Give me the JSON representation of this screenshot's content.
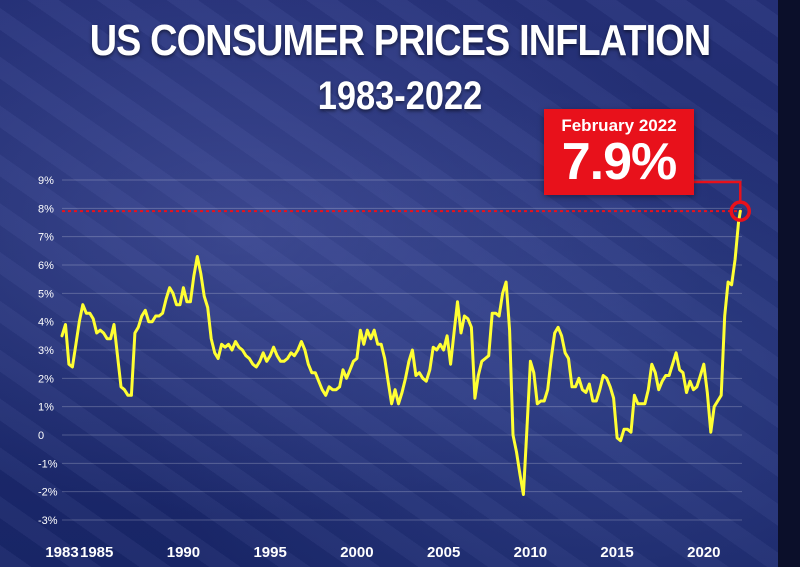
{
  "header": {
    "title": "US CONSUMER PRICES INFLATION",
    "subtitle": "1983-2022"
  },
  "callout": {
    "label": "February 2022",
    "value": "7.9%"
  },
  "colors": {
    "line": "#ffff33",
    "highlight": "#e8111b",
    "grid": "#ffffff",
    "text": "#ffffff"
  },
  "chart_data": {
    "type": "line",
    "title": "US CONSUMER PRICES INFLATION",
    "subtitle": "1983-2022",
    "xlabel": "",
    "ylabel": "",
    "ylim": [
      -3,
      9
    ],
    "xlim": [
      1983,
      2022.2
    ],
    "yticks": [
      {
        "value": 9,
        "label": "9%"
      },
      {
        "value": 8,
        "label": "8%"
      },
      {
        "value": 7,
        "label": "7%"
      },
      {
        "value": 6,
        "label": "6%"
      },
      {
        "value": 5,
        "label": "5%"
      },
      {
        "value": 4,
        "label": "4%"
      },
      {
        "value": 3,
        "label": "3%"
      },
      {
        "value": 2,
        "label": "2%"
      },
      {
        "value": 1,
        "label": "1%"
      },
      {
        "value": 0,
        "label": "0"
      },
      {
        "value": -1,
        "label": "-1%"
      },
      {
        "value": -2,
        "label": "-2%"
      },
      {
        "value": -3,
        "label": "-3%"
      }
    ],
    "xticks": [
      {
        "value": 1983,
        "label": "1983"
      },
      {
        "value": 1985,
        "label": "1985"
      },
      {
        "value": 1990,
        "label": "1990"
      },
      {
        "value": 1995,
        "label": "1995"
      },
      {
        "value": 2000,
        "label": "2000"
      },
      {
        "value": 2005,
        "label": "2005"
      },
      {
        "value": 2010,
        "label": "2010"
      },
      {
        "value": 2015,
        "label": "2015"
      },
      {
        "value": 2020,
        "label": "2020"
      }
    ],
    "reference_line": {
      "value": 7.9
    },
    "highlight_point": {
      "x": 2022.1,
      "y": 7.9
    },
    "series": [
      {
        "points": [
          [
            1983.0,
            3.5
          ],
          [
            1983.2,
            3.9
          ],
          [
            1983.4,
            2.5
          ],
          [
            1983.6,
            2.4
          ],
          [
            1983.8,
            3.2
          ],
          [
            1984.0,
            4.0
          ],
          [
            1984.2,
            4.6
          ],
          [
            1984.4,
            4.3
          ],
          [
            1984.6,
            4.3
          ],
          [
            1984.8,
            4.1
          ],
          [
            1985.0,
            3.6
          ],
          [
            1985.2,
            3.7
          ],
          [
            1985.4,
            3.6
          ],
          [
            1985.6,
            3.4
          ],
          [
            1985.8,
            3.4
          ],
          [
            1986.0,
            3.9
          ],
          [
            1986.2,
            2.8
          ],
          [
            1986.4,
            1.7
          ],
          [
            1986.6,
            1.6
          ],
          [
            1986.8,
            1.4
          ],
          [
            1987.0,
            1.4
          ],
          [
            1987.2,
            3.6
          ],
          [
            1987.4,
            3.8
          ],
          [
            1987.6,
            4.2
          ],
          [
            1987.8,
            4.4
          ],
          [
            1988.0,
            4.0
          ],
          [
            1988.2,
            4.0
          ],
          [
            1988.4,
            4.2
          ],
          [
            1988.6,
            4.2
          ],
          [
            1988.8,
            4.3
          ],
          [
            1989.0,
            4.8
          ],
          [
            1989.2,
            5.2
          ],
          [
            1989.4,
            5.0
          ],
          [
            1989.6,
            4.6
          ],
          [
            1989.8,
            4.6
          ],
          [
            1990.0,
            5.2
          ],
          [
            1990.2,
            4.7
          ],
          [
            1990.4,
            4.7
          ],
          [
            1990.6,
            5.6
          ],
          [
            1990.8,
            6.3
          ],
          [
            1991.0,
            5.7
          ],
          [
            1991.2,
            4.9
          ],
          [
            1991.4,
            4.5
          ],
          [
            1991.6,
            3.4
          ],
          [
            1991.8,
            2.9
          ],
          [
            1992.0,
            2.7
          ],
          [
            1992.2,
            3.2
          ],
          [
            1992.4,
            3.1
          ],
          [
            1992.6,
            3.2
          ],
          [
            1992.8,
            3.0
          ],
          [
            1993.0,
            3.3
          ],
          [
            1993.2,
            3.1
          ],
          [
            1993.4,
            3.0
          ],
          [
            1993.6,
            2.8
          ],
          [
            1993.8,
            2.7
          ],
          [
            1994.0,
            2.5
          ],
          [
            1994.2,
            2.4
          ],
          [
            1994.4,
            2.6
          ],
          [
            1994.6,
            2.9
          ],
          [
            1994.8,
            2.6
          ],
          [
            1995.0,
            2.8
          ],
          [
            1995.2,
            3.1
          ],
          [
            1995.4,
            2.8
          ],
          [
            1995.6,
            2.6
          ],
          [
            1995.8,
            2.6
          ],
          [
            1996.0,
            2.7
          ],
          [
            1996.2,
            2.9
          ],
          [
            1996.4,
            2.8
          ],
          [
            1996.6,
            3.0
          ],
          [
            1996.8,
            3.3
          ],
          [
            1997.0,
            3.0
          ],
          [
            1997.2,
            2.5
          ],
          [
            1997.4,
            2.2
          ],
          [
            1997.6,
            2.2
          ],
          [
            1997.8,
            1.9
          ],
          [
            1998.0,
            1.6
          ],
          [
            1998.2,
            1.4
          ],
          [
            1998.4,
            1.7
          ],
          [
            1998.6,
            1.6
          ],
          [
            1998.8,
            1.6
          ],
          [
            1999.0,
            1.7
          ],
          [
            1999.2,
            2.3
          ],
          [
            1999.4,
            2.0
          ],
          [
            1999.6,
            2.3
          ],
          [
            1999.8,
            2.6
          ],
          [
            2000.0,
            2.7
          ],
          [
            2000.2,
            3.7
          ],
          [
            2000.4,
            3.2
          ],
          [
            2000.6,
            3.7
          ],
          [
            2000.8,
            3.4
          ],
          [
            2001.0,
            3.7
          ],
          [
            2001.2,
            3.2
          ],
          [
            2001.4,
            3.2
          ],
          [
            2001.6,
            2.7
          ],
          [
            2001.8,
            1.9
          ],
          [
            2002.0,
            1.1
          ],
          [
            2002.2,
            1.6
          ],
          [
            2002.4,
            1.1
          ],
          [
            2002.6,
            1.5
          ],
          [
            2002.8,
            2.0
          ],
          [
            2003.0,
            2.6
          ],
          [
            2003.2,
            3.0
          ],
          [
            2003.4,
            2.1
          ],
          [
            2003.6,
            2.2
          ],
          [
            2003.8,
            2.0
          ],
          [
            2004.0,
            1.9
          ],
          [
            2004.2,
            2.3
          ],
          [
            2004.4,
            3.1
          ],
          [
            2004.6,
            3.0
          ],
          [
            2004.8,
            3.2
          ],
          [
            2005.0,
            3.0
          ],
          [
            2005.2,
            3.5
          ],
          [
            2005.4,
            2.5
          ],
          [
            2005.6,
            3.6
          ],
          [
            2005.8,
            4.7
          ],
          [
            2006.0,
            3.6
          ],
          [
            2006.2,
            4.2
          ],
          [
            2006.4,
            4.1
          ],
          [
            2006.6,
            3.8
          ],
          [
            2006.8,
            1.3
          ],
          [
            2007.0,
            2.1
          ],
          [
            2007.2,
            2.6
          ],
          [
            2007.4,
            2.7
          ],
          [
            2007.6,
            2.8
          ],
          [
            2007.8,
            4.3
          ],
          [
            2008.0,
            4.3
          ],
          [
            2008.2,
            4.2
          ],
          [
            2008.4,
            5.0
          ],
          [
            2008.6,
            5.4
          ],
          [
            2008.8,
            3.7
          ],
          [
            2009.0,
            0.0
          ],
          [
            2009.2,
            -0.6
          ],
          [
            2009.4,
            -1.4
          ],
          [
            2009.6,
            -2.1
          ],
          [
            2009.8,
            0.2
          ],
          [
            2010.0,
            2.6
          ],
          [
            2010.2,
            2.2
          ],
          [
            2010.4,
            1.1
          ],
          [
            2010.6,
            1.2
          ],
          [
            2010.8,
            1.2
          ],
          [
            2011.0,
            1.6
          ],
          [
            2011.2,
            2.7
          ],
          [
            2011.4,
            3.6
          ],
          [
            2011.6,
            3.8
          ],
          [
            2011.8,
            3.5
          ],
          [
            2012.0,
            2.9
          ],
          [
            2012.2,
            2.7
          ],
          [
            2012.4,
            1.7
          ],
          [
            2012.6,
            1.7
          ],
          [
            2012.8,
            2.0
          ],
          [
            2013.0,
            1.6
          ],
          [
            2013.2,
            1.5
          ],
          [
            2013.4,
            1.8
          ],
          [
            2013.6,
            1.2
          ],
          [
            2013.8,
            1.2
          ],
          [
            2014.0,
            1.6
          ],
          [
            2014.2,
            2.1
          ],
          [
            2014.4,
            2.0
          ],
          [
            2014.6,
            1.7
          ],
          [
            2014.8,
            1.3
          ],
          [
            2015.0,
            -0.1
          ],
          [
            2015.2,
            -0.2
          ],
          [
            2015.4,
            0.2
          ],
          [
            2015.6,
            0.2
          ],
          [
            2015.8,
            0.1
          ],
          [
            2016.0,
            1.4
          ],
          [
            2016.2,
            1.1
          ],
          [
            2016.4,
            1.1
          ],
          [
            2016.6,
            1.1
          ],
          [
            2016.8,
            1.6
          ],
          [
            2017.0,
            2.5
          ],
          [
            2017.2,
            2.2
          ],
          [
            2017.4,
            1.6
          ],
          [
            2017.6,
            1.9
          ],
          [
            2017.8,
            2.1
          ],
          [
            2018.0,
            2.1
          ],
          [
            2018.2,
            2.5
          ],
          [
            2018.4,
            2.9
          ],
          [
            2018.6,
            2.3
          ],
          [
            2018.8,
            2.2
          ],
          [
            2019.0,
            1.5
          ],
          [
            2019.2,
            1.9
          ],
          [
            2019.4,
            1.6
          ],
          [
            2019.6,
            1.7
          ],
          [
            2019.8,
            2.1
          ],
          [
            2020.0,
            2.5
          ],
          [
            2020.2,
            1.5
          ],
          [
            2020.4,
            0.1
          ],
          [
            2020.6,
            1.0
          ],
          [
            2020.8,
            1.2
          ],
          [
            2021.0,
            1.4
          ],
          [
            2021.2,
            4.2
          ],
          [
            2021.4,
            5.4
          ],
          [
            2021.6,
            5.3
          ],
          [
            2021.8,
            6.2
          ],
          [
            2022.0,
            7.5
          ],
          [
            2022.1,
            7.9
          ]
        ]
      }
    ]
  }
}
